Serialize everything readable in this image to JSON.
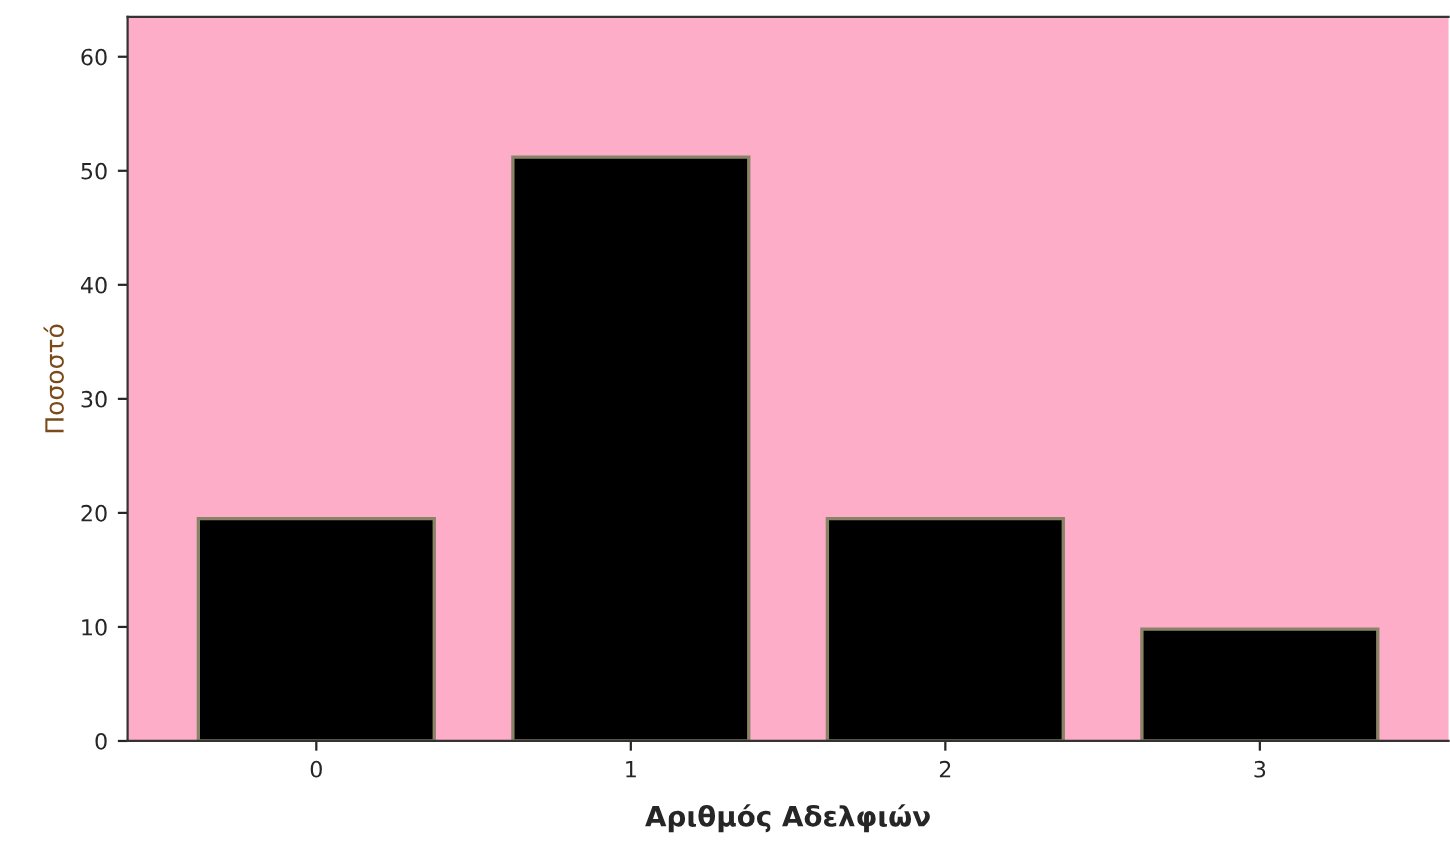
{
  "chart_data": {
    "type": "bar",
    "xlabel": "Αριθμός Αδελφιών",
    "ylabel": "Ποσοστό",
    "categories": [
      "0",
      "1",
      "2",
      "3"
    ],
    "values": [
      19.5,
      51.2,
      19.5,
      9.8
    ],
    "color": "#000000",
    "ylim": [
      0,
      63.5
    ],
    "yticks": [
      0,
      10,
      20,
      30,
      40,
      50,
      60
    ],
    "grid": false
  }
}
